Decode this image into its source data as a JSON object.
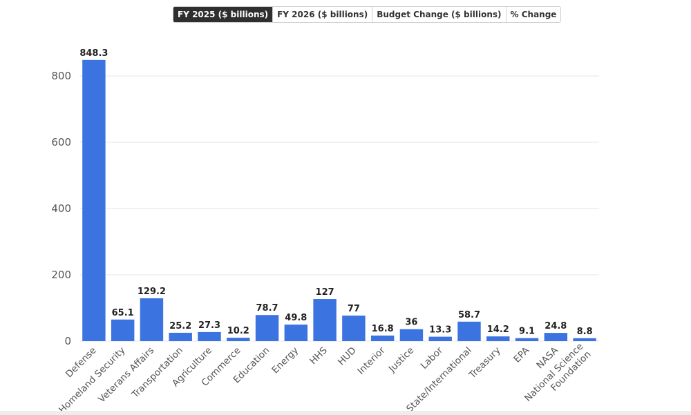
{
  "tabs": [
    {
      "label": "FY 2025 ($ billions)",
      "active": true
    },
    {
      "label": "FY 2026 ($ billions)",
      "active": false
    },
    {
      "label": "Budget Change ($ billions)",
      "active": false
    },
    {
      "label": "% Change",
      "active": false
    }
  ],
  "colors": {
    "bar": "#3b73e0",
    "grid": "#e6e6e6",
    "axis_text": "#555555",
    "label_text": "#222222"
  },
  "chart_data": {
    "type": "bar",
    "categories": [
      "Defense",
      "Homeland Security",
      "Veterans Affairs",
      "Transportation",
      "Agriculture",
      "Commerce",
      "Education",
      "Energy",
      "HHS",
      "HUD",
      "Interior",
      "Justice",
      "Labor",
      "State/International",
      "Treasury",
      "EPA",
      "NASA",
      "National Science Foundation"
    ],
    "values": [
      848.3,
      65.1,
      129.2,
      25.2,
      27.3,
      10.2,
      78.7,
      49.8,
      127,
      77,
      16.8,
      36,
      13.3,
      58.7,
      14.2,
      9.1,
      24.8,
      8.8
    ],
    "data_labels": [
      "848.3",
      "65.1",
      "129.2",
      "25.2",
      "27.3",
      "10.2",
      "78.7",
      "49.8",
      "127",
      "77",
      "16.8",
      "36",
      "13.3",
      "58.7",
      "14.2",
      "9.1",
      "24.8",
      "8.8"
    ],
    "title": "",
    "xlabel": "",
    "ylabel": "",
    "yticks": [
      0,
      200,
      400,
      600,
      800
    ],
    "ylim": [
      0,
      900
    ],
    "grid": true
  }
}
